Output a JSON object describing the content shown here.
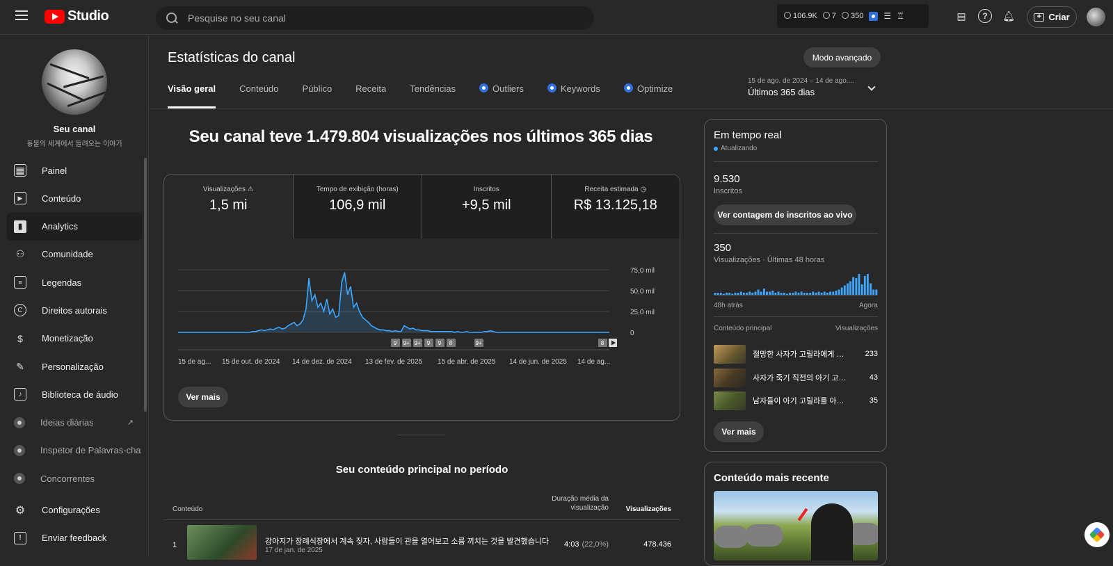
{
  "topbar": {
    "logo_text": "Studio",
    "search_placeholder": "Pesquise no seu canal",
    "stats": {
      "watch": "106.9K",
      "views_small": "7",
      "views": "350"
    },
    "criar_label": "Criar"
  },
  "sidebar": {
    "channel_name": "Seu canal",
    "channel_desc": "동물의 세계에서 들려오는 이야기",
    "items": [
      {
        "label": "Painel",
        "icon": "dashboard-icon"
      },
      {
        "label": "Conteúdo",
        "icon": "content-icon"
      },
      {
        "label": "Analytics",
        "icon": "analytics-icon",
        "active": true
      },
      {
        "label": "Comunidade",
        "icon": "community-icon"
      },
      {
        "label": "Legendas",
        "icon": "subtitles-icon"
      },
      {
        "label": "Direitos autorais",
        "icon": "copyright-icon"
      },
      {
        "label": "Monetização",
        "icon": "monetization-icon"
      },
      {
        "label": "Personalização",
        "icon": "customization-icon"
      },
      {
        "label": "Biblioteca de áudio",
        "icon": "audio-library-icon"
      },
      {
        "label": "Ideias diárias",
        "icon": "vidiq-icon"
      },
      {
        "label": "Inspetor de Palavras-chav",
        "icon": "vidiq-icon"
      },
      {
        "label": "Concorrentes",
        "icon": "vidiq-icon"
      },
      {
        "label": "Configurações",
        "icon": "gear-icon"
      },
      {
        "label": "Enviar feedback",
        "icon": "feedback-icon"
      }
    ]
  },
  "header": {
    "title": "Estatísticas do canal",
    "advanced_button": "Modo avançado",
    "tabs": [
      "Visão geral",
      "Conteúdo",
      "Público",
      "Receita",
      "Tendências",
      "Outliers",
      "Keywords",
      "Optimize"
    ],
    "date_range_small": "15 de ago. de 2024 – 14 de ago....",
    "date_range_label": "Últimos 365 dias"
  },
  "overview": {
    "headline": "Seu canal teve 1.479.804 visualizações nos últimos 365 dias",
    "metrics": [
      {
        "label": "Visualizações",
        "value": "1,5 mi"
      },
      {
        "label": "Tempo de exibição (horas)",
        "value": "106,9 mil"
      },
      {
        "label": "Inscritos",
        "value": "+9,5 mil"
      },
      {
        "label": "Receita estimada",
        "value": "R$ 13.125,18"
      }
    ],
    "ver_mais": "Ver mais"
  },
  "chart_data": {
    "type": "area",
    "series": [
      {
        "values": [
          0,
          0,
          0,
          0,
          0,
          0,
          0,
          0,
          0,
          0,
          0,
          0,
          0,
          0,
          0,
          0,
          0,
          0,
          0,
          0,
          0,
          0,
          0,
          0,
          0,
          1,
          1,
          2,
          3,
          2,
          3,
          4,
          3,
          5,
          6,
          4,
          5,
          8,
          10,
          12,
          8,
          10,
          15,
          28,
          65,
          38,
          45,
          30,
          35,
          25,
          40,
          22,
          28,
          18,
          20,
          60,
          72,
          45,
          55,
          30,
          35,
          25,
          18,
          15,
          12,
          8,
          6,
          4,
          3,
          3,
          2,
          2,
          1,
          2,
          1,
          1,
          8,
          6,
          4,
          5,
          3,
          3,
          2,
          2,
          2,
          1,
          1,
          1,
          1,
          1,
          1,
          1,
          1,
          0,
          1,
          0,
          0,
          1,
          0,
          0,
          0,
          0,
          0,
          1,
          1,
          2,
          1,
          0,
          0,
          0,
          0,
          0,
          0,
          0,
          0,
          0,
          0,
          0,
          0,
          0,
          0,
          0,
          0,
          0,
          0,
          0,
          0,
          0,
          0,
          0,
          0,
          0,
          0,
          0,
          0,
          0,
          0,
          0,
          0,
          0,
          0,
          0,
          0,
          0,
          0,
          0
        ]
      }
    ],
    "x_ticks": [
      "15 de ag...",
      "15 de out. de 2024",
      "14 de dez. de 2024",
      "13 de fev. de 2025",
      "15 de abr. de 2025",
      "14 de jun. de 2025",
      "14 de ag..."
    ],
    "y_ticks": [
      "75,0 mil",
      "50,0 mil",
      "25,0 mil",
      "0"
    ],
    "ylim": [
      0,
      75000
    ],
    "y_values_note": "values in thousands of views",
    "markers": [
      "9",
      "9+",
      "9+",
      "9",
      "9",
      "8",
      "9+",
      "8"
    ],
    "color": "#3ea6ff"
  },
  "top_content": {
    "title": "Seu conteúdo principal no período",
    "col_content": "Conteúdo",
    "col_duration": "Duração média da visualização",
    "col_views": "Visualizações",
    "rows": [
      {
        "rank": "1",
        "title": "강아지가 장례식장에서 계속 짖자, 사람들이 관을 열어보고 소름 끼치는 것을 발견했습니다",
        "date": "17 de jan. de 2025",
        "duration": "4:03",
        "pct": "(22,0%)",
        "views": "478.436"
      }
    ]
  },
  "realtime": {
    "title": "Em tempo real",
    "updating": "Atualizando",
    "subscribers": "9.530",
    "subscribers_label": "Inscritos",
    "live_button": "Ver contagem de inscritos ao vivo",
    "views": "350",
    "views_label": "Visualizações · Últimas 48 horas",
    "axis_left": "48h atrás",
    "axis_right": "Agora",
    "bars": [
      2,
      2,
      2,
      1,
      2,
      2,
      1,
      2,
      2,
      3,
      2,
      2,
      3,
      2,
      3,
      5,
      3,
      6,
      3,
      3,
      4,
      2,
      3,
      2,
      2,
      1,
      2,
      2,
      3,
      2,
      3,
      2,
      2,
      2,
      3,
      2,
      3,
      2,
      3,
      2,
      3,
      3,
      4,
      5,
      7,
      9,
      11,
      13,
      17,
      16,
      20,
      10,
      18,
      20,
      11,
      5,
      5
    ],
    "list_head": "Conteúdo principal",
    "list_head_right": "Visualizações",
    "items": [
      {
        "title": "절망한 사자가 고릴라에게 도움...",
        "views": "233"
      },
      {
        "title": "사자가 죽기 직전의 아기 고릴라...",
        "views": "43"
      },
      {
        "title": "남자들이 아기 고릴라를 아나콘...",
        "views": "35"
      }
    ],
    "ver_mais": "Ver mais"
  },
  "recent": {
    "title": "Conteúdo mais recente"
  }
}
